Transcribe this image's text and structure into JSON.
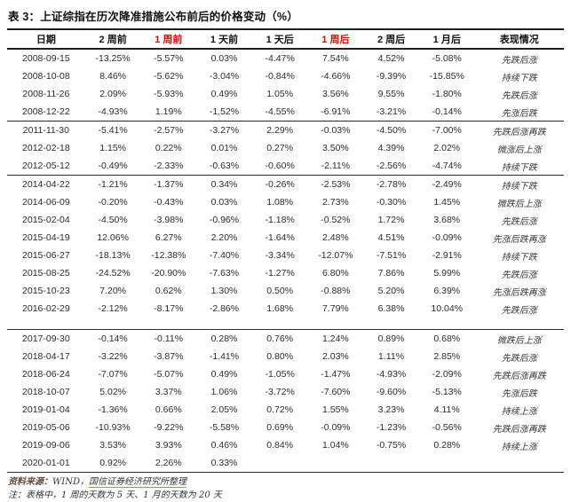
{
  "title": "表 3：上证综指在历次降准措施公布前后的价格变动（%）",
  "table": {
    "columns": [
      "日期",
      "2 周前",
      "1 周前",
      "1 天前",
      "1 天后",
      "1 周后",
      "2 周后",
      "1 月后",
      "表现情况"
    ],
    "red_column_indexes": [
      2,
      5
    ],
    "groups": [
      {
        "rows": [
          [
            "2008-09-15",
            "-13.25%",
            "-5.57%",
            "0.03%",
            "-4.47%",
            "7.54%",
            "4.52%",
            "-5.08%",
            "先跌后涨"
          ],
          [
            "2008-10-08",
            "8.46%",
            "-5.62%",
            "-3.04%",
            "-0.84%",
            "-4.66%",
            "-9.39%",
            "-15.85%",
            "持续下跌"
          ],
          [
            "2008-11-26",
            "2.09%",
            "-5.93%",
            "0.49%",
            "1.05%",
            "3.56%",
            "9.55%",
            "-1.80%",
            "先跌后涨"
          ],
          [
            "2008-12-22",
            "-4.93%",
            "1.19%",
            "-1.52%",
            "-4.55%",
            "-6.91%",
            "-3.21%",
            "-0.14%",
            "先涨后跌"
          ]
        ]
      },
      {
        "rows": [
          [
            "2011-11-30",
            "-5.41%",
            "-2.57%",
            "-3.27%",
            "2.29%",
            "-0.03%",
            "-4.50%",
            "-7.00%",
            "先跌后涨再跌"
          ],
          [
            "2012-02-18",
            "1.15%",
            "0.22%",
            "0.01%",
            "0.27%",
            "3.50%",
            "4.39%",
            "2.02%",
            "微涨后上涨"
          ],
          [
            "2012-05-12",
            "-0.49%",
            "-2.33%",
            "-0.63%",
            "-0.60%",
            "-2.11%",
            "-2.56%",
            "-4.74%",
            "持续下跌"
          ]
        ]
      },
      {
        "spacer_after": true,
        "rows": [
          [
            "2014-04-22",
            "-1.21%",
            "-1.37%",
            "0.34%",
            "-0.26%",
            "-2.53%",
            "-2.78%",
            "-2.49%",
            "持续下跌"
          ],
          [
            "2014-06-09",
            "-0.20%",
            "-0.43%",
            "0.03%",
            "1.08%",
            "2.73%",
            "-0.30%",
            "1.45%",
            "微跌后上涨"
          ],
          [
            "2015-02-04",
            "-4.50%",
            "-3.98%",
            "-0.96%",
            "-1.18%",
            "-0.52%",
            "1.72%",
            "3.68%",
            "先跌后涨"
          ],
          [
            "2015-04-19",
            "12.06%",
            "6.27%",
            "2.20%",
            "-1.64%",
            "2.48%",
            "4.51%",
            "-0.09%",
            "先涨后跌再涨"
          ],
          [
            "2015-06-27",
            "-18.13%",
            "-12.38%",
            "-7.40%",
            "-3.34%",
            "-12.07%",
            "-7.51%",
            "-2.91%",
            "持续下跌"
          ],
          [
            "2015-08-25",
            "-24.52%",
            "-20.90%",
            "-7.63%",
            "-1.27%",
            "6.80%",
            "7.86%",
            "5.99%",
            "先跌后涨"
          ],
          [
            "2015-10-23",
            "7.20%",
            "0.62%",
            "1.30%",
            "0.50%",
            "-0.88%",
            "5.20%",
            "6.39%",
            "先涨后跌再涨"
          ],
          [
            "2016-02-29",
            "-2.12%",
            "-8.17%",
            "-2.86%",
            "1.68%",
            "7.79%",
            "6.38%",
            "10.04%",
            "先跌后涨"
          ]
        ]
      },
      {
        "rows": [
          [
            "2017-09-30",
            "-0.14%",
            "-0.11%",
            "0.28%",
            "0.76%",
            "1.24%",
            "0.89%",
            "0.68%",
            "微跌后上涨"
          ],
          [
            "2018-04-17",
            "-3.22%",
            "-3.87%",
            "-1.41%",
            "0.80%",
            "2.03%",
            "1.11%",
            "2.85%",
            "先跌后涨"
          ],
          [
            "2018-06-24",
            "-7.07%",
            "-5.07%",
            "0.49%",
            "-1.05%",
            "-1.47%",
            "-4.93%",
            "-2.09%",
            "先跌后涨再跌"
          ],
          [
            "2018-10-07",
            "5.02%",
            "3.37%",
            "1.06%",
            "-3.72%",
            "-7.60%",
            "-9.60%",
            "-5.13%",
            "先涨后跌"
          ],
          [
            "2019-01-04",
            "-1.36%",
            "0.66%",
            "2.05%",
            "0.72%",
            "1.55%",
            "3.23%",
            "4.11%",
            "持续上涨"
          ],
          [
            "2019-05-06",
            "-10.93%",
            "-9.22%",
            "-5.58%",
            "0.69%",
            "-0.09%",
            "-1.23%",
            "-0.56%",
            "先跌后涨再跌"
          ],
          [
            "2019-09-06",
            "3.53%",
            "3.93%",
            "0.46%",
            "0.84%",
            "1.04%",
            "-0.75%",
            "0.28%",
            "持续上涨"
          ],
          [
            "2020-01-01",
            "0.92%",
            "2.26%",
            "0.33%",
            "",
            "",
            "",
            "",
            ""
          ]
        ]
      }
    ]
  },
  "footer": {
    "source_prefix": "资料来源：",
    "source_plain": "WIND，",
    "source_link": "国信证券经济研究所整理",
    "note": "注：表格中，1 周的天数为 5 天、1 月的天数为 20 天"
  },
  "colors": {
    "header_accent_red": "#e80000",
    "separator_line": "#1f1f1f",
    "source_label": "#5c4b3f",
    "link_underline": "#3fb3e0"
  }
}
